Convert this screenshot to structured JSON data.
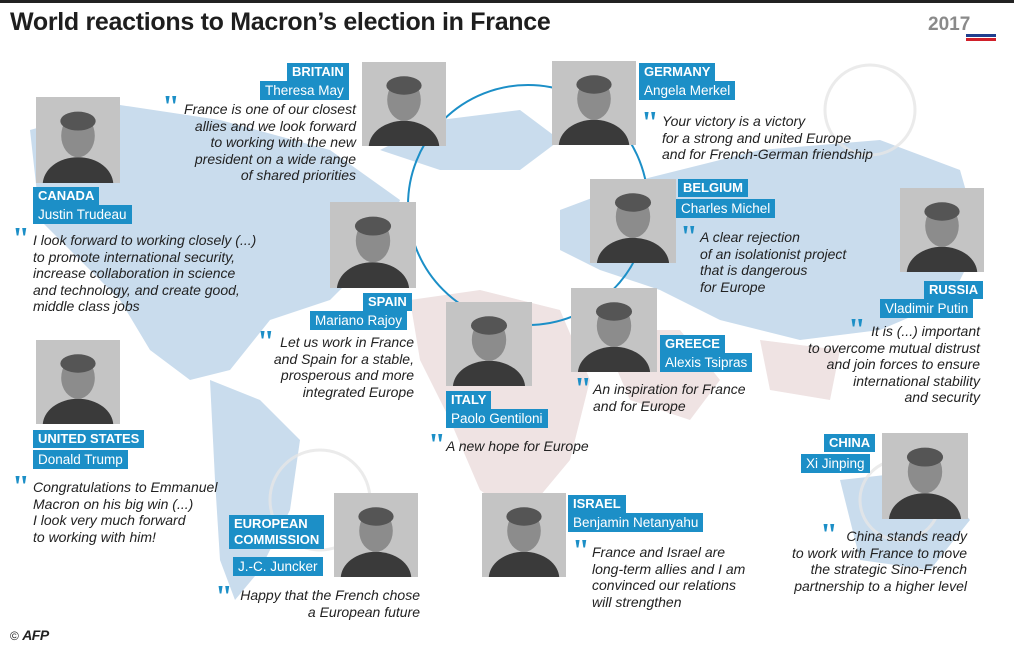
{
  "title": "World reactions to Macron’s election in France",
  "logo_year": "2017",
  "credit_symbol": "©",
  "credit_agency": "AFP",
  "colors": {
    "accent": "#1c8fc7",
    "map": "#c9dced",
    "land": "#eee4e4",
    "title": "#1e1e1e"
  },
  "reactions": [
    {
      "country": "BRITAIN",
      "leader": "Theresa May",
      "quote": "France is one of our closest\nallies and we look forward\nto working with the new\npresident on a wide range\nof shared priorities"
    },
    {
      "country": "GERMANY",
      "leader": "Angela Merkel",
      "quote": "Your victory is a victory\nfor a strong and united Europe\nand for French-German friendship"
    },
    {
      "country": "CANADA",
      "leader": "Justin Trudeau",
      "quote": "I look forward to working closely (...)\nto promote international security,\nincrease collaboration in science\nand technology, and create good,\nmiddle class jobs"
    },
    {
      "country": "BELGIUM",
      "leader": "Charles Michel",
      "quote": "A clear rejection\nof an isolationist project\nthat is dangerous\nfor Europe"
    },
    {
      "country": "RUSSIA",
      "leader": "Vladimir Putin",
      "quote": "It is (...) important\nto overcome mutual distrust\nand join forces to ensure\ninternational stability\nand security"
    },
    {
      "country": "SPAIN",
      "leader": "Mariano Rajoy",
      "quote": "Let us work in France\nand Spain for a stable,\nprosperous and more\nintegrated Europe"
    },
    {
      "country": "GREECE",
      "leader": "Alexis Tsipras",
      "quote": "An inspiration for France\nand for Europe"
    },
    {
      "country": "ITALY",
      "leader": "Paolo Gentiloni",
      "quote": "A new hope for Europe"
    },
    {
      "country": "UNITED STATES",
      "leader": "Donald Trump",
      "quote": "Congratulations to Emmanuel\nMacron on his big win (...)\nI look very much forward\nto working with him!"
    },
    {
      "country": "CHINA",
      "leader": "Xi Jinping",
      "quote": "China stands ready\nto work with France to move\nthe strategic Sino-French\npartnership to a higher level"
    },
    {
      "country": "EUROPEAN\nCOMMISSION",
      "leader": "J.-C. Juncker",
      "quote": "Happy that the French chose\na European future"
    },
    {
      "country": "ISRAEL",
      "leader": "Benjamin Netanyahu",
      "quote": "France and Israel are\nlong-term allies and I am\nconvinced our relations\nwill strengthen"
    }
  ]
}
